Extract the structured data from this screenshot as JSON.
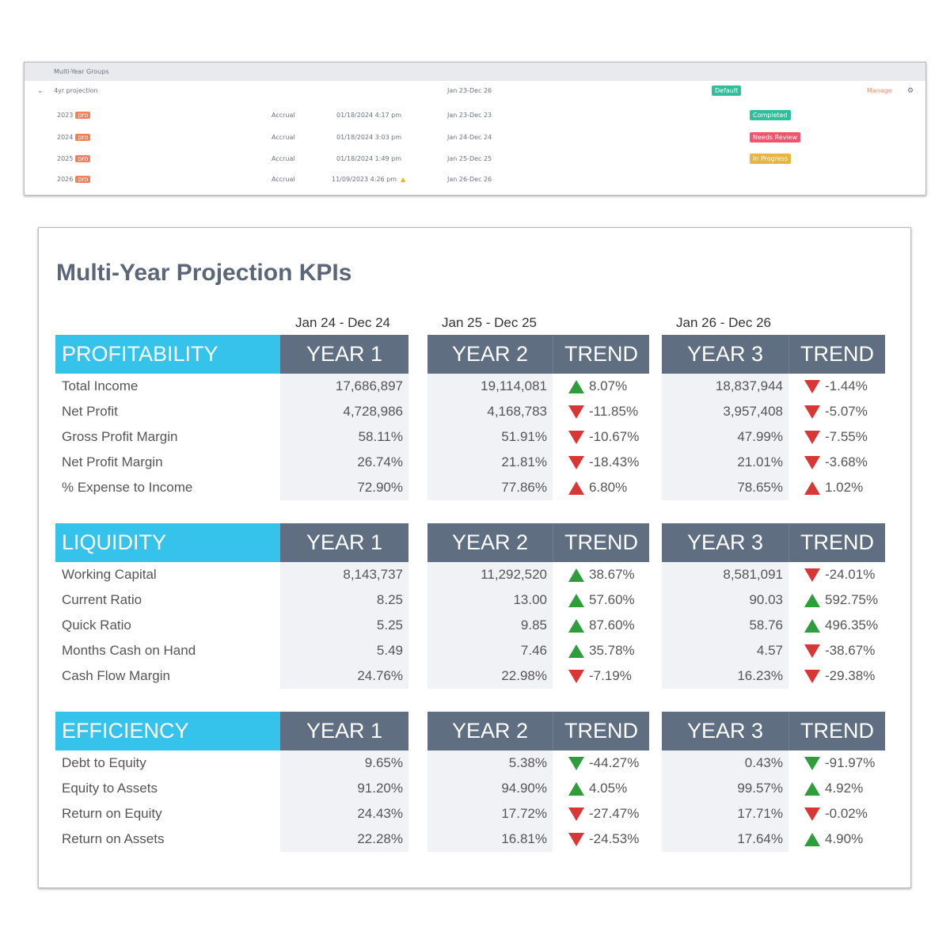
{
  "groups": {
    "header": "Multi-Year Groups",
    "group": {
      "name": "4yr projection",
      "range": "Jan 23-Dec 26",
      "badge": "Default",
      "manage": "Manage"
    },
    "rows": [
      {
        "year": "2023",
        "tag": "pro",
        "method": "Accrual",
        "updated": "01/18/2024 4:17 pm",
        "range": "Jan 23-Dec 23",
        "status": "Completed",
        "status_color": "#2fbf9a",
        "warning": false
      },
      {
        "year": "2024",
        "tag": "pro",
        "method": "Accrual",
        "updated": "01/18/2024 3:03 pm",
        "range": "Jan 24-Dec 24",
        "status": "Needs Review",
        "status_color": "#f2546e",
        "warning": false
      },
      {
        "year": "2025",
        "tag": "pro",
        "method": "Accrual",
        "updated": "01/18/2024 1:49 pm",
        "range": "Jan 25-Dec 25",
        "status": "In Progress",
        "status_color": "#e9b540",
        "warning": false
      },
      {
        "year": "2026",
        "tag": "pro",
        "method": "Accrual",
        "updated": "11/09/2023 4:26 pm",
        "range": "Jan 26-Dec 26",
        "status": "",
        "status_color": "",
        "warning": true
      }
    ]
  },
  "kpi": {
    "title": "Multi-Year Projection KPIs",
    "periods": [
      "Jan 24 - Dec 24",
      "Jan 25 - Dec 25",
      "Jan 26 - Dec 26"
    ],
    "col_headers": {
      "year1": "YEAR 1",
      "year2": "YEAR 2",
      "year3": "YEAR 3",
      "trend": "TREND"
    },
    "colors": {
      "section": "#35c3eb",
      "header": "#5f6e80",
      "good": "#2e9e3a",
      "bad": "#d93636"
    },
    "sections": [
      {
        "name": "PROFITABILITY",
        "rows": [
          {
            "label": "Total Income",
            "y1": "17,686,897",
            "y2": "19,114,081",
            "t2": {
              "v": "8.07%",
              "dir": "up",
              "good": true
            },
            "y3": "18,837,944",
            "t3": {
              "v": "-1.44%",
              "dir": "down",
              "good": false
            }
          },
          {
            "label": "Net Profit",
            "y1": "4,728,986",
            "y2": "4,168,783",
            "t2": {
              "v": "-11.85%",
              "dir": "down",
              "good": false
            },
            "y3": "3,957,408",
            "t3": {
              "v": "-5.07%",
              "dir": "down",
              "good": false
            }
          },
          {
            "label": "Gross Profit Margin",
            "y1": "58.11%",
            "y2": "51.91%",
            "t2": {
              "v": "-10.67%",
              "dir": "down",
              "good": false
            },
            "y3": "47.99%",
            "t3": {
              "v": "-7.55%",
              "dir": "down",
              "good": false
            }
          },
          {
            "label": "Net Profit Margin",
            "y1": "26.74%",
            "y2": "21.81%",
            "t2": {
              "v": "-18.43%",
              "dir": "down",
              "good": false
            },
            "y3": "21.01%",
            "t3": {
              "v": "-3.68%",
              "dir": "down",
              "good": false
            }
          },
          {
            "label": "% Expense to Income",
            "y1": "72.90%",
            "y2": "77.86%",
            "t2": {
              "v": "6.80%",
              "dir": "up",
              "good": false
            },
            "y3": "78.65%",
            "t3": {
              "v": "1.02%",
              "dir": "up",
              "good": false
            }
          }
        ]
      },
      {
        "name": "LIQUIDITY",
        "rows": [
          {
            "label": "Working Capital",
            "y1": "8,143,737",
            "y2": "11,292,520",
            "t2": {
              "v": "38.67%",
              "dir": "up",
              "good": true
            },
            "y3": "8,581,091",
            "t3": {
              "v": "-24.01%",
              "dir": "down",
              "good": false
            }
          },
          {
            "label": "Current Ratio",
            "y1": "8.25",
            "y2": "13.00",
            "t2": {
              "v": "57.60%",
              "dir": "up",
              "good": true
            },
            "y3": "90.03",
            "t3": {
              "v": "592.75%",
              "dir": "up",
              "good": true
            }
          },
          {
            "label": "Quick Ratio",
            "y1": "5.25",
            "y2": "9.85",
            "t2": {
              "v": "87.60%",
              "dir": "up",
              "good": true
            },
            "y3": "58.76",
            "t3": {
              "v": "496.35%",
              "dir": "up",
              "good": true
            }
          },
          {
            "label": "Months Cash on Hand",
            "y1": "5.49",
            "y2": "7.46",
            "t2": {
              "v": "35.78%",
              "dir": "up",
              "good": true
            },
            "y3": "4.57",
            "t3": {
              "v": "-38.67%",
              "dir": "down",
              "good": false
            }
          },
          {
            "label": "Cash Flow Margin",
            "y1": "24.76%",
            "y2": "22.98%",
            "t2": {
              "v": "-7.19%",
              "dir": "down",
              "good": false
            },
            "y3": "16.23%",
            "t3": {
              "v": "-29.38%",
              "dir": "down",
              "good": false
            }
          }
        ]
      },
      {
        "name": "EFFICIENCY",
        "rows": [
          {
            "label": "Debt to Equity",
            "y1": "9.65%",
            "y2": "5.38%",
            "t2": {
              "v": "-44.27%",
              "dir": "down",
              "good": true
            },
            "y3": "0.43%",
            "t3": {
              "v": "-91.97%",
              "dir": "down",
              "good": true
            }
          },
          {
            "label": "Equity to Assets",
            "y1": "91.20%",
            "y2": "94.90%",
            "t2": {
              "v": "4.05%",
              "dir": "up",
              "good": true
            },
            "y3": "99.57%",
            "t3": {
              "v": "4.92%",
              "dir": "up",
              "good": true
            }
          },
          {
            "label": "Return on Equity",
            "y1": "24.43%",
            "y2": "17.72%",
            "t2": {
              "v": "-27.47%",
              "dir": "down",
              "good": false
            },
            "y3": "17.71%",
            "t3": {
              "v": "-0.02%",
              "dir": "down",
              "good": false
            }
          },
          {
            "label": "Return on Assets",
            "y1": "22.28%",
            "y2": "16.81%",
            "t2": {
              "v": "-24.53%",
              "dir": "down",
              "good": false
            },
            "y3": "17.64%",
            "t3": {
              "v": "4.90%",
              "dir": "up",
              "good": true
            }
          }
        ]
      }
    ]
  }
}
